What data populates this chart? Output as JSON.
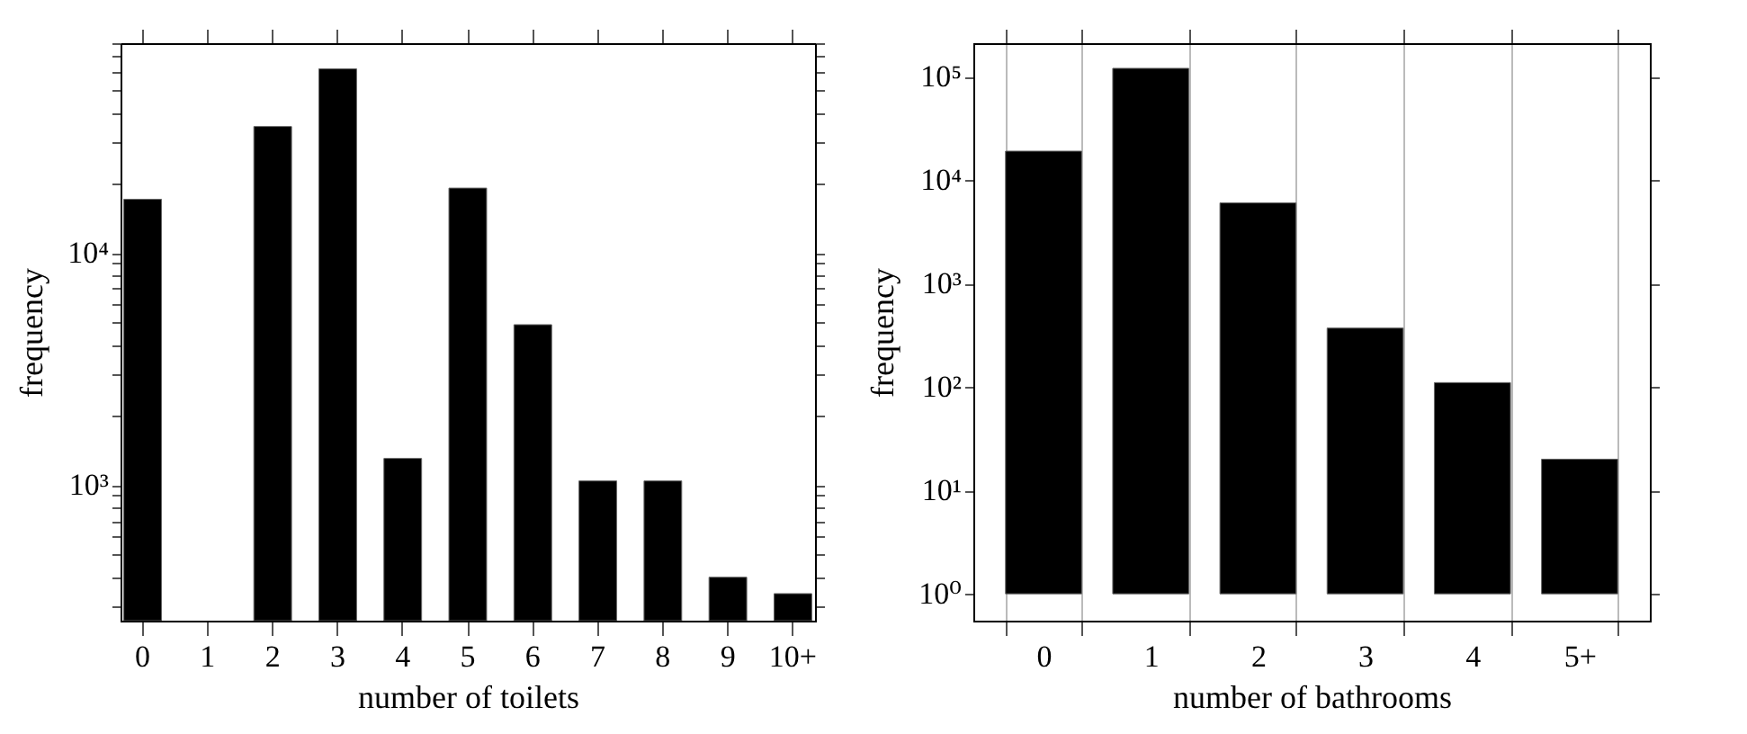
{
  "chart_data": [
    {
      "type": "bar",
      "xlabel": "number of toilets",
      "ylabel": "frequency",
      "log": true,
      "color": "#000000",
      "categories": [
        "0",
        "1",
        "2",
        "3",
        "4",
        "5",
        "6",
        "7",
        "8",
        "9",
        "10+"
      ],
      "values": [
        17000,
        null,
        35000,
        62000,
        1300,
        19000,
        4900,
        1040,
        1040,
        400,
        340
      ],
      "ylim": [
        260,
        80000
      ],
      "yticks": [
        {
          "value": 300,
          "label": null
        },
        {
          "value": 400,
          "label": null
        },
        {
          "value": 500,
          "label": null
        },
        {
          "value": 600,
          "label": null
        },
        {
          "value": 700,
          "label": null
        },
        {
          "value": 800,
          "label": null
        },
        {
          "value": 900,
          "label": null
        },
        {
          "value": 1000,
          "label": "10³"
        },
        {
          "value": 2000,
          "label": null
        },
        {
          "value": 3000,
          "label": null
        },
        {
          "value": 4000,
          "label": null
        },
        {
          "value": 5000,
          "label": null
        },
        {
          "value": 6000,
          "label": null
        },
        {
          "value": 7000,
          "label": null
        },
        {
          "value": 8000,
          "label": null
        },
        {
          "value": 9000,
          "label": null
        },
        {
          "value": 10000,
          "label": "10⁴"
        },
        {
          "value": 20000,
          "label": null
        },
        {
          "value": 30000,
          "label": null
        },
        {
          "value": 40000,
          "label": null
        },
        {
          "value": 50000,
          "label": null
        },
        {
          "value": 60000,
          "label": null
        },
        {
          "value": 70000,
          "label": null
        },
        {
          "value": 80000,
          "label": null
        }
      ]
    },
    {
      "type": "bar",
      "xlabel": "number of bathrooms",
      "ylabel": "frequency",
      "log": true,
      "grid": "x",
      "color": "#000000",
      "categories": [
        "0",
        "1",
        "2",
        "3",
        "4",
        "5+"
      ],
      "values": [
        18999,
        119999,
        5999,
        369,
        109,
        19
      ],
      "base": [
        1,
        1,
        1,
        1,
        1,
        1
      ],
      "ylim": [
        0.55,
        210000
      ],
      "yticks": [
        {
          "value": 1,
          "label": "10⁰"
        },
        {
          "value": 10,
          "label": "10¹"
        },
        {
          "value": 100,
          "label": "10²"
        },
        {
          "value": 1000,
          "label": "10³"
        },
        {
          "value": 10000,
          "label": "10⁴"
        },
        {
          "value": 100000,
          "label": "10⁵"
        }
      ]
    }
  ]
}
